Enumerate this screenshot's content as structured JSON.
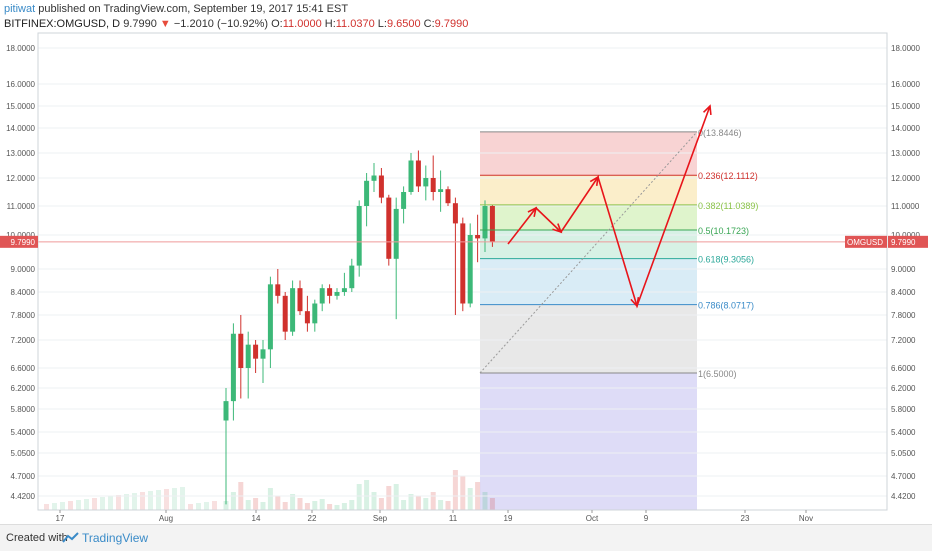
{
  "header": {
    "user": "pitiwat",
    "published": " published on TradingView.com, September 19, 2017 15:41 EST",
    "symbol": "BITFINEX:OMGUSD, D",
    "last": "9.7990",
    "change": "−1.2010 (−10.92%)",
    "o_label": "O:",
    "o": "11.0000",
    "h_label": "H:",
    "h": "11.0370",
    "l_label": "L:",
    "l": "9.6500",
    "c_label": "C:",
    "c": "9.7990"
  },
  "footer": {
    "created_with": "Created with",
    "brand": "TradingView"
  },
  "colors": {
    "up": "#3cb878",
    "down": "#d0312d",
    "arrow": "#e8151b",
    "price_line": "#ef9a9a",
    "label_bg": "#e05555"
  },
  "chart_data": {
    "type": "candlestick",
    "y_ticks": [
      "18.0000",
      "16.0000",
      "15.0000",
      "14.0000",
      "13.0000",
      "12.0000",
      "11.0000",
      "10.0000",
      "9.0000",
      "8.4000",
      "7.8000",
      "7.2000",
      "6.6000",
      "6.2000",
      "5.8000",
      "5.4000",
      "5.0500",
      "4.7000",
      "4.4200"
    ],
    "x_ticks": [
      "17",
      "Aug",
      "14",
      "22",
      "Sep",
      "11",
      "19",
      "Oct",
      "9",
      "23",
      "Nov"
    ],
    "price_label": {
      "symbol": "OMGUSD",
      "value": "9.7990"
    },
    "fib_levels": [
      {
        "ratio": "0",
        "price": "13.8446",
        "text": "0(13.8446)",
        "color": "#888888",
        "fill": "#f4b6b6"
      },
      {
        "ratio": "0.236",
        "price": "12.1112",
        "text": "0.236(12.1112)",
        "color": "#d0312d",
        "fill": "#f8e3a6"
      },
      {
        "ratio": "0.382",
        "price": "11.0389",
        "text": "0.382(11.0389)",
        "color": "#8bc34a",
        "fill": "#c9ecaa"
      },
      {
        "ratio": "0.5",
        "price": "10.1723",
        "text": "0.5(10.1723)",
        "color": "#3aa655",
        "fill": "#bde8d3"
      },
      {
        "ratio": "0.618",
        "price": "9.3056",
        "text": "0.618(9.3056)",
        "color": "#2ca89a",
        "fill": "#bfe0f0"
      },
      {
        "ratio": "0.786",
        "price": "8.0717",
        "text": "0.786(8.0717)",
        "color": "#3a8bc8",
        "fill": "#d9d9d9"
      },
      {
        "ratio": "1",
        "price": "6.5000",
        "text": "1(6.5000)",
        "color": "#888888",
        "fill": "#c8c4f2"
      }
    ],
    "candles": [
      {
        "o": 5.6,
        "h": 6.2,
        "l": 4.3,
        "c": 5.95
      },
      {
        "o": 5.95,
        "h": 7.6,
        "l": 5.6,
        "c": 7.35
      },
      {
        "o": 7.35,
        "h": 7.8,
        "l": 6.0,
        "c": 6.6
      },
      {
        "o": 6.6,
        "h": 7.4,
        "l": 6.0,
        "c": 7.1
      },
      {
        "o": 7.1,
        "h": 7.2,
        "l": 6.5,
        "c": 6.8
      },
      {
        "o": 6.8,
        "h": 7.2,
        "l": 6.3,
        "c": 7.0
      },
      {
        "o": 7.0,
        "h": 8.8,
        "l": 6.6,
        "c": 8.6
      },
      {
        "o": 8.6,
        "h": 9.0,
        "l": 8.1,
        "c": 8.3
      },
      {
        "o": 8.3,
        "h": 8.4,
        "l": 7.2,
        "c": 7.4
      },
      {
        "o": 7.4,
        "h": 8.7,
        "l": 7.3,
        "c": 8.5
      },
      {
        "o": 8.5,
        "h": 8.7,
        "l": 7.8,
        "c": 7.9
      },
      {
        "o": 7.9,
        "h": 8.3,
        "l": 7.4,
        "c": 7.6
      },
      {
        "o": 7.6,
        "h": 8.2,
        "l": 7.4,
        "c": 8.1
      },
      {
        "o": 8.1,
        "h": 8.6,
        "l": 7.9,
        "c": 8.5
      },
      {
        "o": 8.5,
        "h": 8.6,
        "l": 8.1,
        "c": 8.3
      },
      {
        "o": 8.3,
        "h": 8.5,
        "l": 8.2,
        "c": 8.4
      },
      {
        "o": 8.4,
        "h": 8.9,
        "l": 8.3,
        "c": 8.5
      },
      {
        "o": 8.5,
        "h": 9.3,
        "l": 8.4,
        "c": 9.1
      },
      {
        "o": 9.1,
        "h": 11.2,
        "l": 8.8,
        "c": 11.0
      },
      {
        "o": 11.0,
        "h": 12.2,
        "l": 10.3,
        "c": 11.9
      },
      {
        "o": 11.9,
        "h": 12.6,
        "l": 11.5,
        "c": 12.1
      },
      {
        "o": 12.1,
        "h": 12.4,
        "l": 11.1,
        "c": 11.3
      },
      {
        "o": 11.3,
        "h": 11.4,
        "l": 9.1,
        "c": 9.3
      },
      {
        "o": 9.3,
        "h": 11.3,
        "l": 7.7,
        "c": 10.9
      },
      {
        "o": 10.9,
        "h": 11.7,
        "l": 10.4,
        "c": 11.5
      },
      {
        "o": 11.5,
        "h": 13.0,
        "l": 11.4,
        "c": 12.7
      },
      {
        "o": 12.7,
        "h": 13.1,
        "l": 11.5,
        "c": 11.7
      },
      {
        "o": 11.7,
        "h": 12.5,
        "l": 11.2,
        "c": 12.0
      },
      {
        "o": 12.0,
        "h": 12.9,
        "l": 11.2,
        "c": 11.5
      },
      {
        "o": 11.5,
        "h": 12.3,
        "l": 10.8,
        "c": 11.6
      },
      {
        "o": 11.6,
        "h": 11.7,
        "l": 11.0,
        "c": 11.1
      },
      {
        "o": 11.1,
        "h": 11.3,
        "l": 7.8,
        "c": 10.4
      },
      {
        "o": 10.4,
        "h": 10.6,
        "l": 7.9,
        "c": 8.1
      },
      {
        "o": 8.1,
        "h": 10.4,
        "l": 8.0,
        "c": 10.0
      },
      {
        "o": 10.0,
        "h": 10.7,
        "l": 9.2,
        "c": 9.9
      },
      {
        "o": 9.9,
        "h": 11.2,
        "l": 9.5,
        "c": 11.0
      },
      {
        "o": 11.0,
        "h": 11.04,
        "l": 9.65,
        "c": 9.8
      }
    ]
  }
}
